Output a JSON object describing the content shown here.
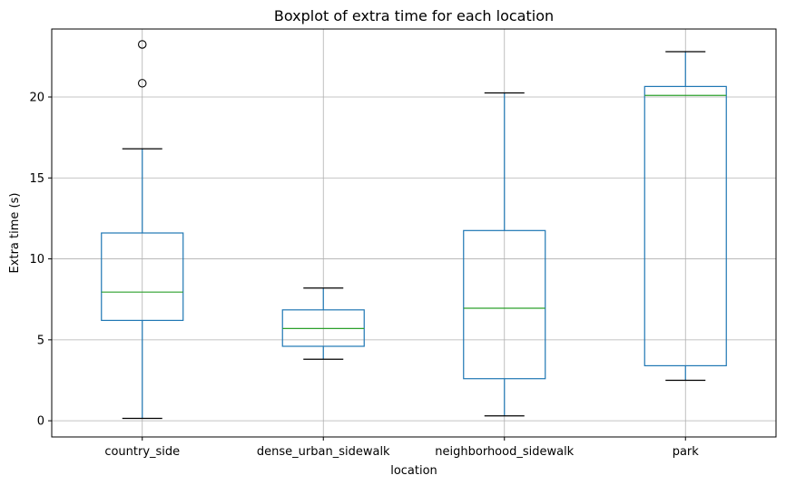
{
  "chart_data": {
    "type": "boxplot",
    "title": "Boxplot of extra time for each location",
    "xlabel": "location",
    "ylabel": "Extra time (s)",
    "ylim": [
      -1.0,
      24.2
    ],
    "yticks": [
      0,
      5,
      10,
      15,
      20
    ],
    "grid": true,
    "colors": {
      "box": "#1f77b4",
      "median": "#2ca02c",
      "whisker_cap": "#000000",
      "grid": "#b0b0b0",
      "flier": "#000000"
    },
    "categories": [
      "country_side",
      "dense_urban_sidewalk",
      "neighborhood_sidewalk",
      "park"
    ],
    "boxes": [
      {
        "category": "country_side",
        "whislo": 0.15,
        "q1": 6.2,
        "med": 7.95,
        "q3": 11.6,
        "whishi": 16.8,
        "fliers": [
          20.85,
          23.25
        ]
      },
      {
        "category": "dense_urban_sidewalk",
        "whislo": 3.8,
        "q1": 4.6,
        "med": 5.7,
        "q3": 6.85,
        "whishi": 8.2,
        "fliers": []
      },
      {
        "category": "neighborhood_sidewalk",
        "whislo": 0.3,
        "q1": 2.6,
        "med": 6.95,
        "q3": 11.75,
        "whishi": 20.25,
        "fliers": []
      },
      {
        "category": "park",
        "whislo": 2.5,
        "q1": 3.4,
        "med": 20.1,
        "q3": 20.65,
        "whishi": 22.8,
        "fliers": []
      }
    ]
  }
}
